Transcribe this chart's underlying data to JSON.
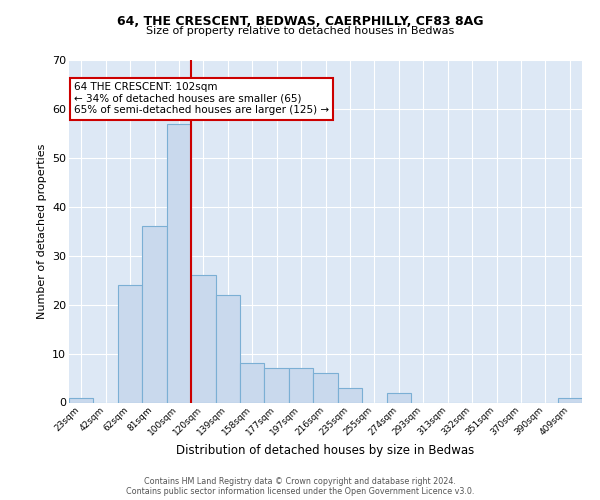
{
  "title1": "64, THE CRESCENT, BEDWAS, CAERPHILLY, CF83 8AG",
  "title2": "Size of property relative to detached houses in Bedwas",
  "xlabel": "Distribution of detached houses by size in Bedwas",
  "ylabel": "Number of detached properties",
  "bin_labels": [
    "23sqm",
    "42sqm",
    "62sqm",
    "81sqm",
    "100sqm",
    "120sqm",
    "139sqm",
    "158sqm",
    "177sqm",
    "197sqm",
    "216sqm",
    "235sqm",
    "255sqm",
    "274sqm",
    "293sqm",
    "313sqm",
    "332sqm",
    "351sqm",
    "370sqm",
    "390sqm",
    "409sqm"
  ],
  "bin_values": [
    1,
    0,
    24,
    36,
    57,
    26,
    22,
    8,
    7,
    7,
    6,
    3,
    0,
    2,
    0,
    0,
    0,
    0,
    0,
    0,
    1
  ],
  "bar_color": "#c9d9ed",
  "bar_edge_color": "#7bafd4",
  "red_line_color": "#cc0000",
  "red_line_bin_index": 4.5,
  "annotation_title": "64 THE CRESCENT: 102sqm",
  "annotation_line2": "← 34% of detached houses are smaller (65)",
  "annotation_line3": "65% of semi-detached houses are larger (125) →",
  "ylim": [
    0,
    70
  ],
  "yticks": [
    0,
    10,
    20,
    30,
    40,
    50,
    60,
    70
  ],
  "background_color": "#dde8f5",
  "footer1": "Contains HM Land Registry data © Crown copyright and database right 2024.",
  "footer2": "Contains public sector information licensed under the Open Government Licence v3.0."
}
